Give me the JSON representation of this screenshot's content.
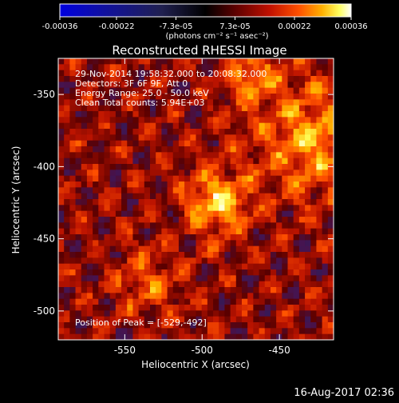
{
  "chart_data": {
    "type": "heatmap",
    "title": "Reconstructed RHESSI Image",
    "xlabel": "Heliocentric X (arcsec)",
    "ylabel": "Heliocentric Y (arcsec)",
    "xlim": [
      -593,
      -415
    ],
    "ylim": [
      -520,
      -325
    ],
    "x_ticks": [
      -550,
      -500,
      -450
    ],
    "y_ticks": [
      -500,
      -450,
      -400,
      -350
    ],
    "x_tick_labels": [
      "-550",
      "-500",
      "-450"
    ],
    "y_tick_labels": [
      "-500",
      "-450",
      "-400",
      "-350"
    ],
    "colorbar": {
      "min": -0.00036,
      "max": 0.00036,
      "ticks": [
        -0.00036,
        -0.00022,
        -7.3e-05,
        7.3e-05,
        0.00022,
        0.00036
      ],
      "tick_labels": [
        "-0.00036",
        "-0.00022",
        "-7.3e-05",
        "7.3e-05",
        "0.00022",
        "0.00036"
      ],
      "units_label": "(photons cm⁻² s⁻¹ asec⁻²)",
      "colormap": [
        "#0000e0",
        "#1010a0",
        "#202050",
        "#000000",
        "#5a0000",
        "#c01000",
        "#ff5000",
        "#ffb000",
        "#ffff60",
        "#ffffff"
      ]
    },
    "peak": {
      "x": -529,
      "y": -492
    },
    "annotations": {
      "time_range": "29-Nov-2014 19:58:32.000 to 20:08:32.000",
      "detectors": "Detectors: 3F 6F 9F, Att 0",
      "energy_range": "Energy Range: 25.0 - 50.0 keV",
      "clean": "Clean    Total counts: 5.94E+03",
      "peak_text": "Position of Peak = [-529,-492]"
    },
    "footer_date": "16-Aug-2017 02:36"
  }
}
